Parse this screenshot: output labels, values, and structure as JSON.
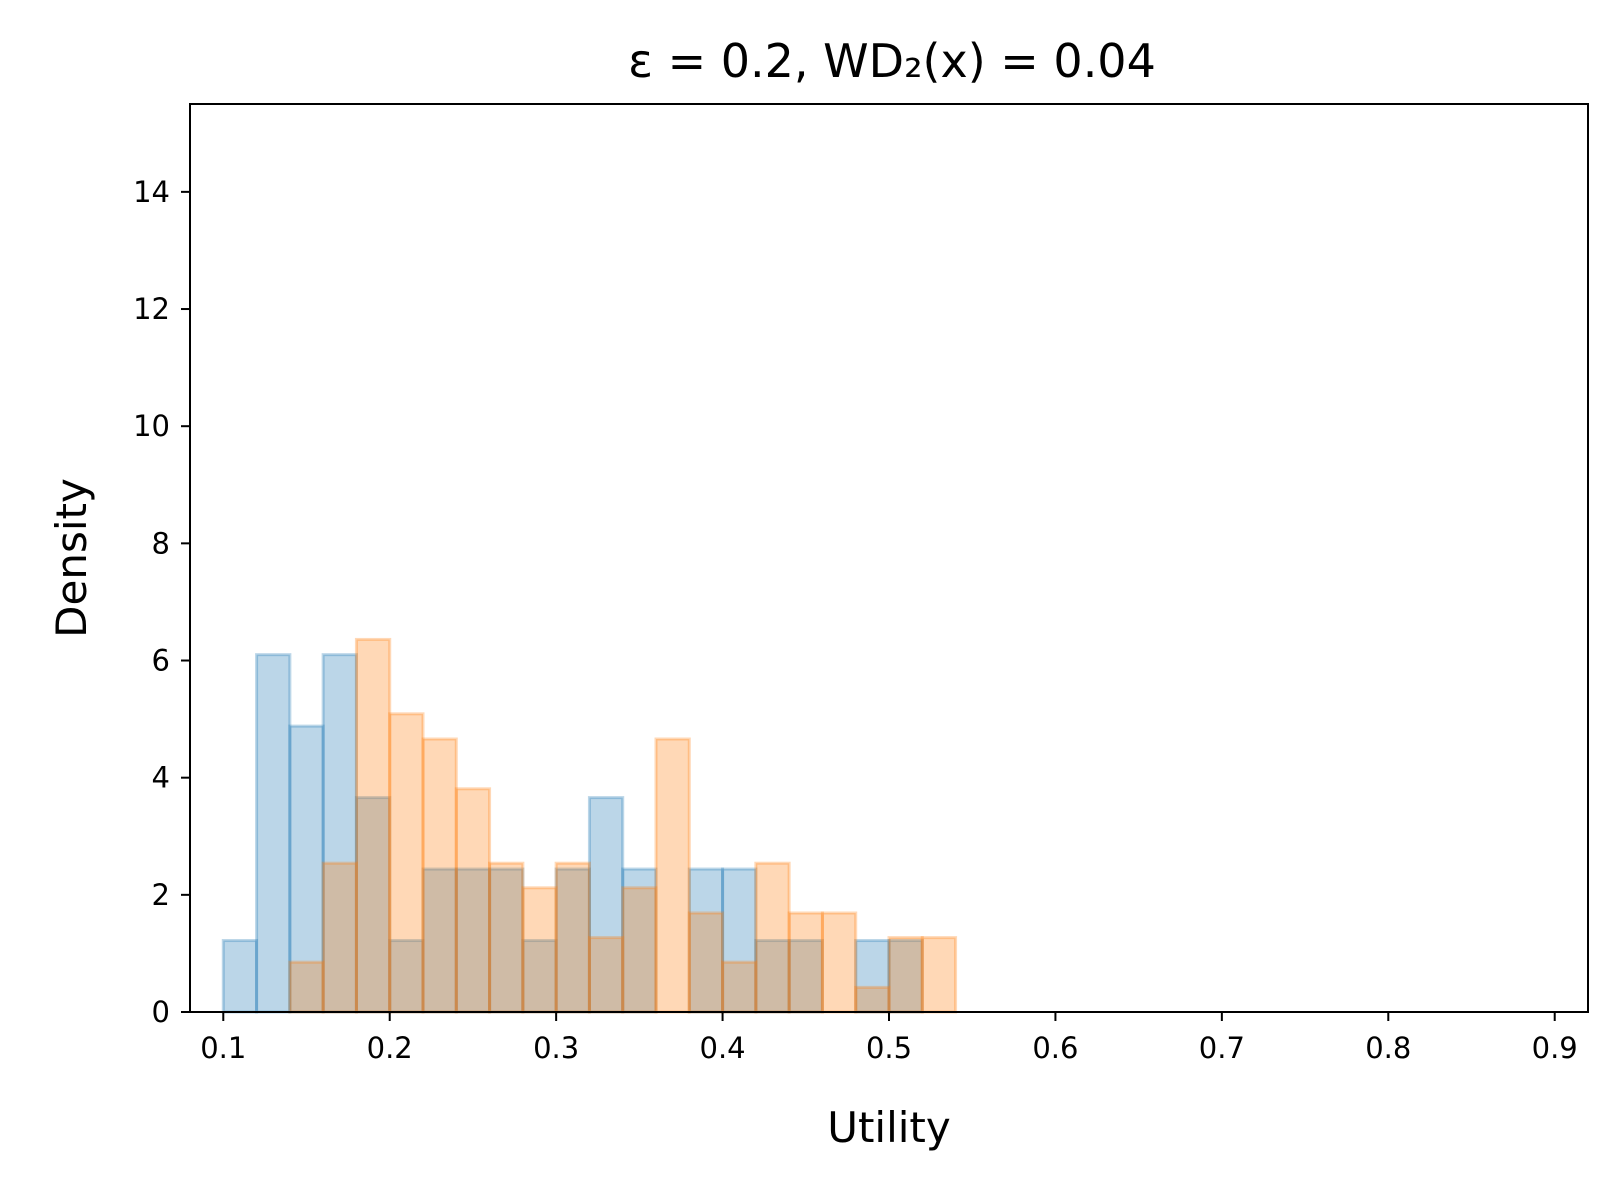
{
  "chart_data": {
    "type": "bar",
    "subtype": "overlapping-histogram",
    "title": "ε = 0.2, WD₂(x) = 0.04",
    "xlabel": "Utility",
    "ylabel": "Density",
    "xlim": [
      0.08,
      0.92
    ],
    "ylim": [
      0,
      15.5
    ],
    "xticks": [
      0.1,
      0.2,
      0.3,
      0.4,
      0.5,
      0.6,
      0.7,
      0.8,
      0.9
    ],
    "xtick_labels": [
      "0.1",
      "0.2",
      "0.3",
      "0.4",
      "0.5",
      "0.6",
      "0.7",
      "0.8",
      "0.9"
    ],
    "yticks": [
      0,
      2,
      4,
      6,
      8,
      10,
      12,
      14
    ],
    "ytick_labels": [
      "0",
      "2",
      "4",
      "6",
      "8",
      "10",
      "12",
      "14"
    ],
    "grid": false,
    "series": [
      {
        "color": "#1f77b4",
        "bin_edges": [
          0.1,
          0.12,
          0.14,
          0.16,
          0.18,
          0.2,
          0.22,
          0.24,
          0.26,
          0.28,
          0.3,
          0.32,
          0.34,
          0.36,
          0.38,
          0.4,
          0.42,
          0.44,
          0.46,
          0.48,
          0.5,
          0.52
        ],
        "values": [
          1.22,
          6.1,
          4.88,
          6.1,
          3.66,
          1.22,
          2.44,
          2.44,
          2.44,
          1.22,
          2.44,
          3.66,
          2.44,
          0,
          2.44,
          2.44,
          1.22,
          1.22,
          0,
          1.22,
          1.22
        ]
      },
      {
        "color": "#ff7f0e",
        "bin_edges": [
          0.14,
          0.16,
          0.18,
          0.2,
          0.22,
          0.24,
          0.26,
          0.28,
          0.3,
          0.32,
          0.34,
          0.36,
          0.38,
          0.4,
          0.42,
          0.44,
          0.46,
          0.48,
          0.5,
          0.52,
          0.54
        ],
        "values": [
          0.85,
          2.54,
          6.36,
          5.09,
          4.66,
          3.81,
          2.54,
          2.12,
          2.54,
          1.27,
          2.12,
          4.66,
          1.69,
          0.85,
          2.54,
          1.69,
          1.69,
          0.42,
          1.27,
          1.27
        ]
      }
    ]
  }
}
